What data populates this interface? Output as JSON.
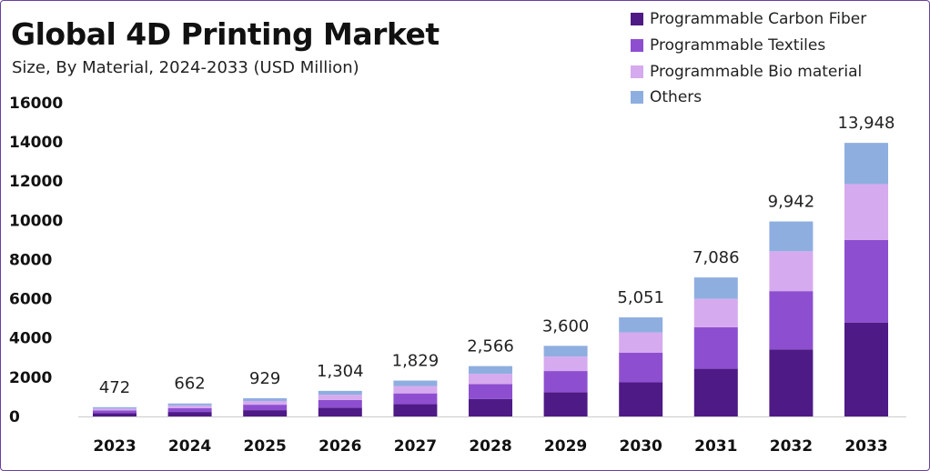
{
  "header": {
    "title": "Global 4D Printing Market",
    "subtitle": "Size, By Material, 2024-2033 (USD Million)"
  },
  "colors": {
    "carbon": "#4e1a86",
    "textiles": "#8d4fd0",
    "bio": "#d6aaee",
    "others": "#8faee0"
  },
  "chart_data": {
    "type": "bar",
    "stacked": true,
    "categories": [
      "2023",
      "2024",
      "2025",
      "2026",
      "2027",
      "2028",
      "2029",
      "2030",
      "2031",
      "2032",
      "2033"
    ],
    "totals": [
      472,
      662,
      929,
      1304,
      1829,
      2566,
      3600,
      5051,
      7086,
      9942,
      13948
    ],
    "total_labels": [
      "472",
      "662",
      "929",
      "1,304",
      "1,829",
      "2,566",
      "3,600",
      "5,051",
      "7,086",
      "9,942",
      "13,948"
    ],
    "series": [
      {
        "name": "Programmable Carbon Fiber",
        "values": [
          165,
          228,
          320,
          450,
          630,
          885,
          1240,
          1740,
          2430,
          3420,
          4790
        ]
      },
      {
        "name": "Programmable Textiles",
        "values": [
          140,
          198,
          278,
          390,
          545,
          765,
          1075,
          1505,
          2120,
          2970,
          4210
        ]
      },
      {
        "name": "Programmable Bio material",
        "values": [
          95,
          135,
          190,
          265,
          375,
          525,
          738,
          1036,
          1446,
          2032,
          2848
        ]
      },
      {
        "name": "Others",
        "values": [
          72,
          101,
          141,
          199,
          279,
          391,
          547,
          770,
          1090,
          1520,
          2100
        ]
      }
    ],
    "y_ticks": [
      "0",
      "2000",
      "4000",
      "6000",
      "8000",
      "10000",
      "12000",
      "14000",
      "16000"
    ],
    "ylim": [
      0,
      16000
    ],
    "legend_position": "top-right",
    "grid": false
  }
}
